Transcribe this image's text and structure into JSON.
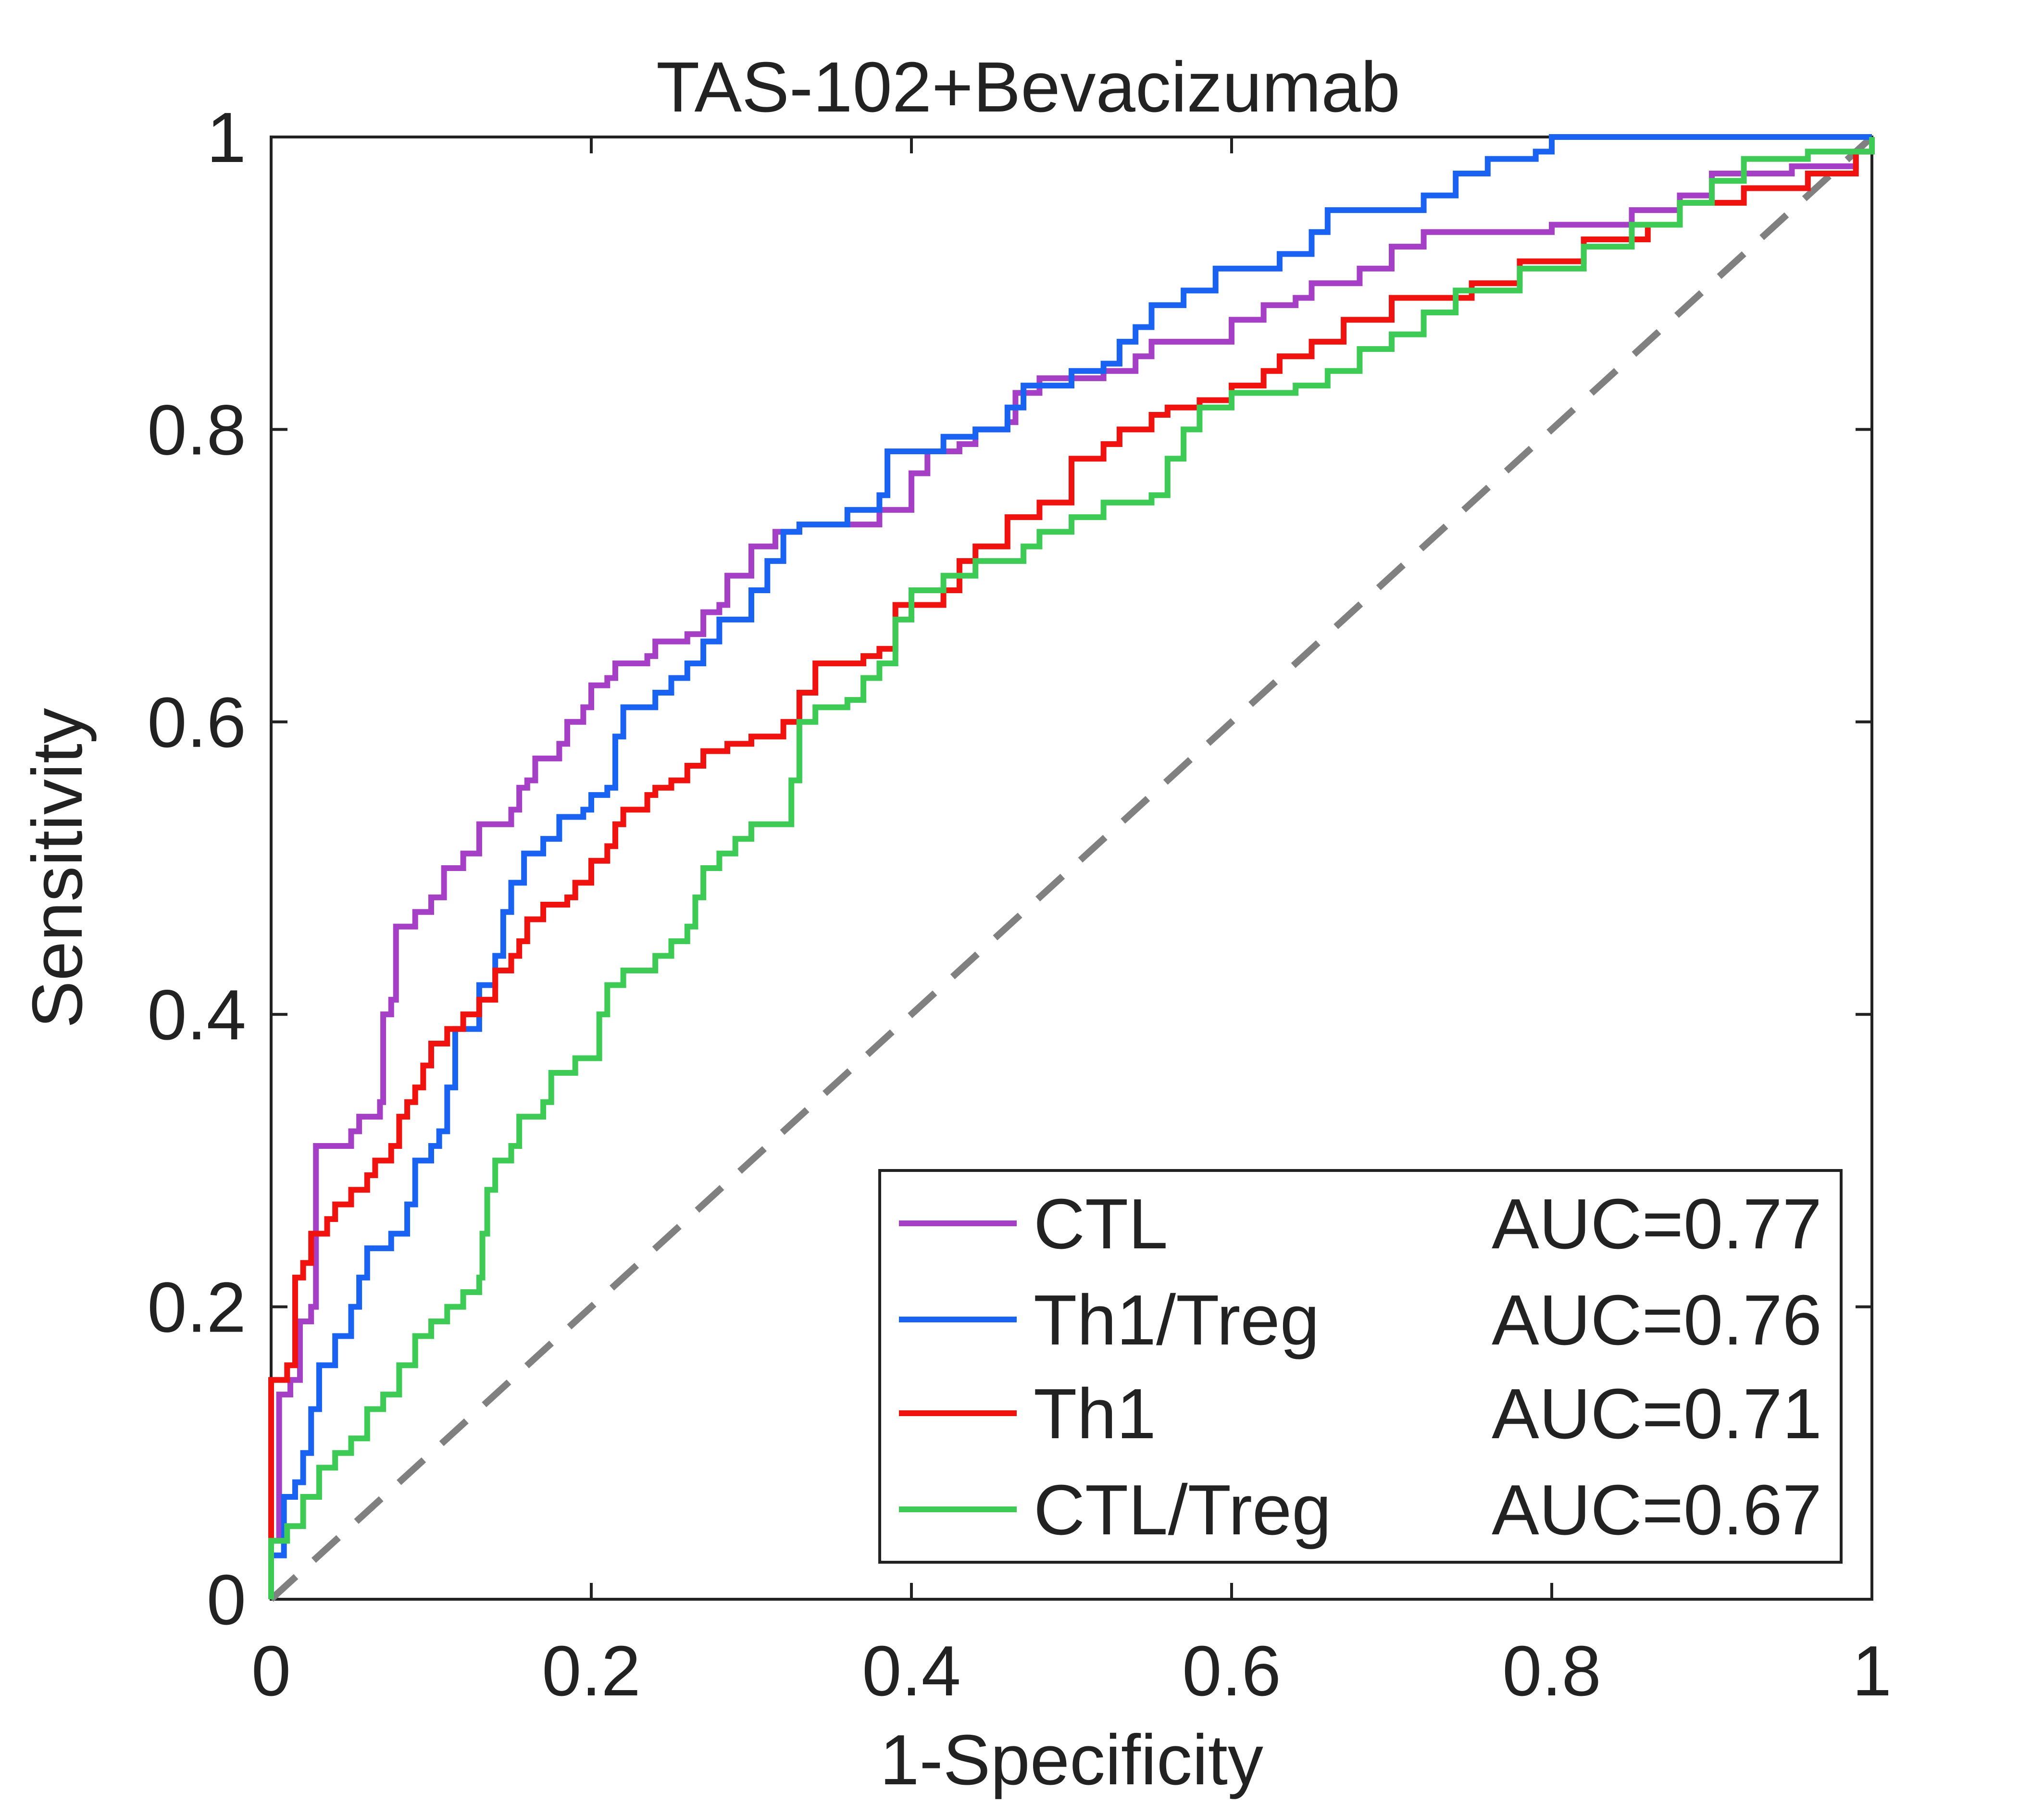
{
  "chart_data": {
    "type": "line",
    "title": "TAS-102+Bevacizumab",
    "xlabel": "1-Specificity",
    "ylabel": "Sensitivity",
    "xlim": [
      0,
      1
    ],
    "ylim": [
      0,
      1
    ],
    "xticks": [
      0,
      0.2,
      0.4,
      0.6,
      0.8,
      1
    ],
    "yticks": [
      0,
      0.2,
      0.4,
      0.6,
      0.8,
      1
    ],
    "xtick_labels": [
      "0",
      "0.2",
      "0.4",
      "0.6",
      "0.8",
      "1"
    ],
    "ytick_labels": [
      "0",
      "0.2",
      "0.4",
      "0.6",
      "0.8",
      "1"
    ],
    "grid": false,
    "legend_position": "bottom-right",
    "reference_line": {
      "style": "dashed",
      "color": "#808080",
      "points": [
        [
          0,
          0
        ],
        [
          1,
          1
        ]
      ]
    },
    "series": [
      {
        "name": "CTL",
        "auc_label": "AUC=0.77",
        "color": "#A53FC6",
        "points": [
          [
            0,
            0
          ],
          [
            0,
            0.04
          ],
          [
            0.005,
            0.14
          ],
          [
            0.012,
            0.15
          ],
          [
            0.018,
            0.19
          ],
          [
            0.025,
            0.2
          ],
          [
            0.028,
            0.31
          ],
          [
            0.05,
            0.32
          ],
          [
            0.055,
            0.33
          ],
          [
            0.068,
            0.34
          ],
          [
            0.07,
            0.4
          ],
          [
            0.075,
            0.41
          ],
          [
            0.078,
            0.46
          ],
          [
            0.09,
            0.47
          ],
          [
            0.1,
            0.48
          ],
          [
            0.108,
            0.5
          ],
          [
            0.12,
            0.51
          ],
          [
            0.13,
            0.53
          ],
          [
            0.15,
            0.54
          ],
          [
            0.155,
            0.555
          ],
          [
            0.16,
            0.56
          ],
          [
            0.165,
            0.575
          ],
          [
            0.18,
            0.585
          ],
          [
            0.185,
            0.6
          ],
          [
            0.195,
            0.61
          ],
          [
            0.2,
            0.625
          ],
          [
            0.21,
            0.63
          ],
          [
            0.215,
            0.64
          ],
          [
            0.235,
            0.645
          ],
          [
            0.24,
            0.655
          ],
          [
            0.26,
            0.66
          ],
          [
            0.27,
            0.675
          ],
          [
            0.28,
            0.68
          ],
          [
            0.285,
            0.7
          ],
          [
            0.3,
            0.72
          ],
          [
            0.315,
            0.73
          ],
          [
            0.33,
            0.735
          ],
          [
            0.38,
            0.745
          ],
          [
            0.4,
            0.77
          ],
          [
            0.41,
            0.785
          ],
          [
            0.43,
            0.79
          ],
          [
            0.44,
            0.8
          ],
          [
            0.46,
            0.805
          ],
          [
            0.465,
            0.825
          ],
          [
            0.48,
            0.835
          ],
          [
            0.52,
            0.84
          ],
          [
            0.54,
            0.85
          ],
          [
            0.55,
            0.86
          ],
          [
            0.6,
            0.875
          ],
          [
            0.62,
            0.885
          ],
          [
            0.64,
            0.89
          ],
          [
            0.65,
            0.9
          ],
          [
            0.68,
            0.91
          ],
          [
            0.7,
            0.925
          ],
          [
            0.72,
            0.935
          ],
          [
            0.8,
            0.94
          ],
          [
            0.85,
            0.95
          ],
          [
            0.88,
            0.96
          ],
          [
            0.9,
            0.975
          ],
          [
            0.95,
            0.98
          ],
          [
            0.99,
            0.99
          ],
          [
            1,
            1
          ]
        ]
      },
      {
        "name": "Th1/Treg",
        "auc_label": "AUC=0.76",
        "color": "#1A63F2",
        "points": [
          [
            0,
            0
          ],
          [
            0,
            0.03
          ],
          [
            0.008,
            0.07
          ],
          [
            0.015,
            0.08
          ],
          [
            0.02,
            0.1
          ],
          [
            0.025,
            0.13
          ],
          [
            0.03,
            0.16
          ],
          [
            0.04,
            0.18
          ],
          [
            0.05,
            0.2
          ],
          [
            0.055,
            0.22
          ],
          [
            0.06,
            0.24
          ],
          [
            0.075,
            0.25
          ],
          [
            0.085,
            0.27
          ],
          [
            0.09,
            0.3
          ],
          [
            0.1,
            0.31
          ],
          [
            0.105,
            0.32
          ],
          [
            0.11,
            0.35
          ],
          [
            0.115,
            0.39
          ],
          [
            0.13,
            0.42
          ],
          [
            0.14,
            0.44
          ],
          [
            0.145,
            0.47
          ],
          [
            0.15,
            0.49
          ],
          [
            0.158,
            0.51
          ],
          [
            0.17,
            0.52
          ],
          [
            0.18,
            0.535
          ],
          [
            0.195,
            0.54
          ],
          [
            0.2,
            0.55
          ],
          [
            0.21,
            0.555
          ],
          [
            0.215,
            0.59
          ],
          [
            0.22,
            0.61
          ],
          [
            0.24,
            0.62
          ],
          [
            0.25,
            0.63
          ],
          [
            0.26,
            0.64
          ],
          [
            0.27,
            0.655
          ],
          [
            0.28,
            0.67
          ],
          [
            0.3,
            0.69
          ],
          [
            0.31,
            0.71
          ],
          [
            0.32,
            0.73
          ],
          [
            0.33,
            0.735
          ],
          [
            0.36,
            0.745
          ],
          [
            0.38,
            0.755
          ],
          [
            0.385,
            0.785
          ],
          [
            0.42,
            0.795
          ],
          [
            0.44,
            0.8
          ],
          [
            0.46,
            0.815
          ],
          [
            0.47,
            0.83
          ],
          [
            0.5,
            0.84
          ],
          [
            0.52,
            0.845
          ],
          [
            0.53,
            0.86
          ],
          [
            0.54,
            0.87
          ],
          [
            0.55,
            0.885
          ],
          [
            0.57,
            0.895
          ],
          [
            0.59,
            0.91
          ],
          [
            0.63,
            0.92
          ],
          [
            0.65,
            0.935
          ],
          [
            0.66,
            0.95
          ],
          [
            0.72,
            0.96
          ],
          [
            0.74,
            0.975
          ],
          [
            0.76,
            0.985
          ],
          [
            0.79,
            0.99
          ],
          [
            0.8,
            1
          ],
          [
            1,
            1
          ]
        ]
      },
      {
        "name": "Th1",
        "auc_label": "AUC=0.71",
        "color": "#F0120F",
        "points": [
          [
            0,
            0
          ],
          [
            0,
            0.15
          ],
          [
            0.01,
            0.16
          ],
          [
            0.015,
            0.22
          ],
          [
            0.02,
            0.23
          ],
          [
            0.025,
            0.25
          ],
          [
            0.035,
            0.26
          ],
          [
            0.04,
            0.27
          ],
          [
            0.05,
            0.28
          ],
          [
            0.06,
            0.29
          ],
          [
            0.065,
            0.3
          ],
          [
            0.075,
            0.31
          ],
          [
            0.08,
            0.33
          ],
          [
            0.085,
            0.34
          ],
          [
            0.09,
            0.35
          ],
          [
            0.095,
            0.365
          ],
          [
            0.1,
            0.38
          ],
          [
            0.11,
            0.39
          ],
          [
            0.12,
            0.4
          ],
          [
            0.13,
            0.41
          ],
          [
            0.14,
            0.43
          ],
          [
            0.15,
            0.44
          ],
          [
            0.155,
            0.45
          ],
          [
            0.16,
            0.465
          ],
          [
            0.17,
            0.475
          ],
          [
            0.185,
            0.48
          ],
          [
            0.19,
            0.49
          ],
          [
            0.2,
            0.505
          ],
          [
            0.21,
            0.515
          ],
          [
            0.215,
            0.53
          ],
          [
            0.22,
            0.54
          ],
          [
            0.235,
            0.55
          ],
          [
            0.24,
            0.555
          ],
          [
            0.25,
            0.56
          ],
          [
            0.26,
            0.57
          ],
          [
            0.27,
            0.58
          ],
          [
            0.285,
            0.585
          ],
          [
            0.3,
            0.59
          ],
          [
            0.32,
            0.6
          ],
          [
            0.33,
            0.62
          ],
          [
            0.34,
            0.64
          ],
          [
            0.37,
            0.645
          ],
          [
            0.38,
            0.65
          ],
          [
            0.39,
            0.68
          ],
          [
            0.42,
            0.69
          ],
          [
            0.43,
            0.71
          ],
          [
            0.44,
            0.72
          ],
          [
            0.46,
            0.74
          ],
          [
            0.48,
            0.75
          ],
          [
            0.5,
            0.78
          ],
          [
            0.52,
            0.79
          ],
          [
            0.53,
            0.8
          ],
          [
            0.55,
            0.81
          ],
          [
            0.56,
            0.815
          ],
          [
            0.58,
            0.82
          ],
          [
            0.6,
            0.83
          ],
          [
            0.62,
            0.84
          ],
          [
            0.63,
            0.85
          ],
          [
            0.65,
            0.86
          ],
          [
            0.67,
            0.875
          ],
          [
            0.7,
            0.89
          ],
          [
            0.75,
            0.9
          ],
          [
            0.78,
            0.915
          ],
          [
            0.82,
            0.93
          ],
          [
            0.86,
            0.94
          ],
          [
            0.88,
            0.955
          ],
          [
            0.92,
            0.965
          ],
          [
            0.96,
            0.975
          ],
          [
            0.99,
            0.99
          ],
          [
            1,
            1
          ]
        ]
      },
      {
        "name": "CTL/Treg",
        "auc_label": "AUC=0.67",
        "color": "#3DCB56",
        "points": [
          [
            0,
            0
          ],
          [
            0,
            0.04
          ],
          [
            0.01,
            0.05
          ],
          [
            0.02,
            0.07
          ],
          [
            0.03,
            0.09
          ],
          [
            0.04,
            0.1
          ],
          [
            0.05,
            0.11
          ],
          [
            0.06,
            0.13
          ],
          [
            0.07,
            0.14
          ],
          [
            0.08,
            0.16
          ],
          [
            0.09,
            0.18
          ],
          [
            0.1,
            0.19
          ],
          [
            0.11,
            0.2
          ],
          [
            0.12,
            0.21
          ],
          [
            0.13,
            0.22
          ],
          [
            0.132,
            0.25
          ],
          [
            0.135,
            0.28
          ],
          [
            0.14,
            0.3
          ],
          [
            0.15,
            0.31
          ],
          [
            0.155,
            0.33
          ],
          [
            0.17,
            0.34
          ],
          [
            0.175,
            0.36
          ],
          [
            0.19,
            0.37
          ],
          [
            0.2,
            0.37
          ],
          [
            0.205,
            0.4
          ],
          [
            0.21,
            0.42
          ],
          [
            0.22,
            0.43
          ],
          [
            0.24,
            0.44
          ],
          [
            0.25,
            0.45
          ],
          [
            0.26,
            0.46
          ],
          [
            0.265,
            0.48
          ],
          [
            0.27,
            0.5
          ],
          [
            0.28,
            0.51
          ],
          [
            0.29,
            0.52
          ],
          [
            0.3,
            0.53
          ],
          [
            0.32,
            0.53
          ],
          [
            0.325,
            0.56
          ],
          [
            0.33,
            0.6
          ],
          [
            0.34,
            0.61
          ],
          [
            0.36,
            0.615
          ],
          [
            0.37,
            0.63
          ],
          [
            0.38,
            0.64
          ],
          [
            0.39,
            0.67
          ],
          [
            0.4,
            0.69
          ],
          [
            0.42,
            0.7
          ],
          [
            0.44,
            0.71
          ],
          [
            0.47,
            0.72
          ],
          [
            0.48,
            0.73
          ],
          [
            0.5,
            0.74
          ],
          [
            0.52,
            0.75
          ],
          [
            0.55,
            0.755
          ],
          [
            0.56,
            0.78
          ],
          [
            0.57,
            0.8
          ],
          [
            0.58,
            0.815
          ],
          [
            0.6,
            0.825
          ],
          [
            0.64,
            0.83
          ],
          [
            0.66,
            0.84
          ],
          [
            0.68,
            0.855
          ],
          [
            0.7,
            0.865
          ],
          [
            0.72,
            0.88
          ],
          [
            0.74,
            0.895
          ],
          [
            0.78,
            0.91
          ],
          [
            0.82,
            0.925
          ],
          [
            0.85,
            0.94
          ],
          [
            0.88,
            0.955
          ],
          [
            0.9,
            0.97
          ],
          [
            0.92,
            0.985
          ],
          [
            0.96,
            0.99
          ],
          [
            1,
            1
          ]
        ]
      }
    ]
  }
}
